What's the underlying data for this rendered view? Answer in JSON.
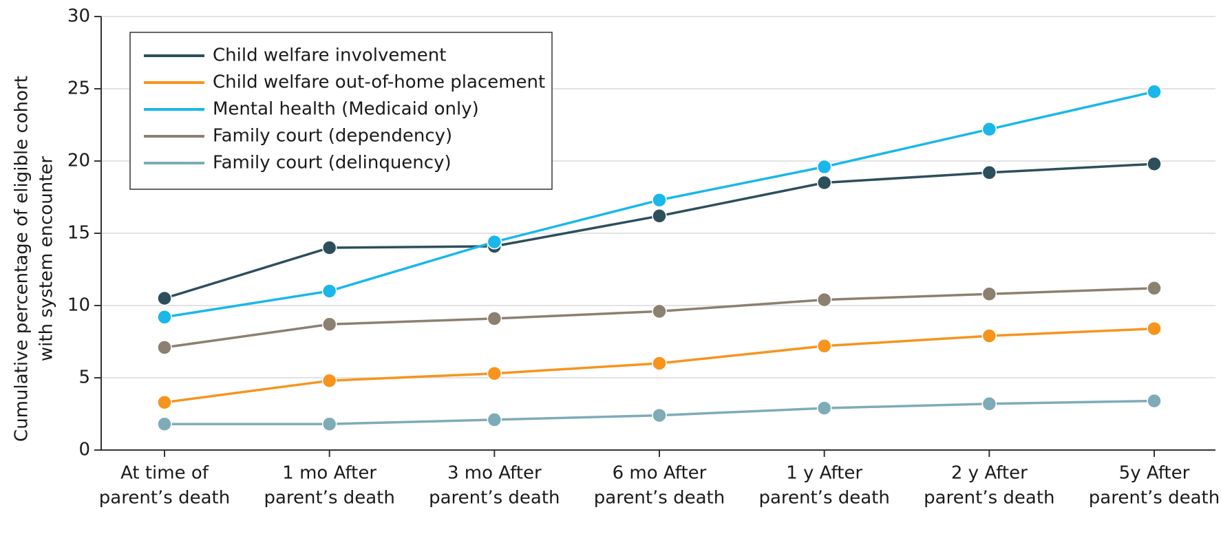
{
  "chart_data": {
    "type": "line",
    "ylabel": [
      "Cumulative percentage of eligible cohort",
      "with system encounter"
    ],
    "categories": [
      [
        "At time of",
        "parent’s death"
      ],
      [
        "1 mo After",
        "parent’s death"
      ],
      [
        "3 mo After",
        "parent’s death"
      ],
      [
        "6 mo After",
        "parent’s death"
      ],
      [
        "1 y After",
        "parent’s death"
      ],
      [
        "2 y After",
        "parent’s death"
      ],
      [
        "5y After",
        "parent’s death"
      ]
    ],
    "series": [
      {
        "name": "Child welfare involvement",
        "color": "#2d4f5c",
        "values": [
          10.5,
          14.0,
          14.1,
          16.2,
          18.5,
          19.2,
          19.8
        ]
      },
      {
        "name": "Child welfare out-of-home placement",
        "color": "#f7941d",
        "values": [
          3.3,
          4.8,
          5.3,
          6.0,
          7.2,
          7.9,
          8.4
        ]
      },
      {
        "name": "Mental health (Medicaid only)",
        "color": "#1ab7ea",
        "values": [
          9.2,
          11.0,
          14.4,
          17.3,
          19.6,
          22.2,
          24.8
        ]
      },
      {
        "name": "Family court (dependency)",
        "color": "#8c8070",
        "values": [
          7.1,
          8.7,
          9.1,
          9.6,
          10.4,
          10.8,
          11.2
        ]
      },
      {
        "name": "Family court (delinquency)",
        "color": "#7eabb8",
        "values": [
          1.8,
          1.8,
          2.1,
          2.4,
          2.9,
          3.2,
          3.4
        ]
      }
    ],
    "ylim": [
      0,
      30
    ],
    "yticks": [
      0,
      5,
      10,
      15,
      20,
      25,
      30
    ],
    "grid": true,
    "legend": "upper left"
  }
}
